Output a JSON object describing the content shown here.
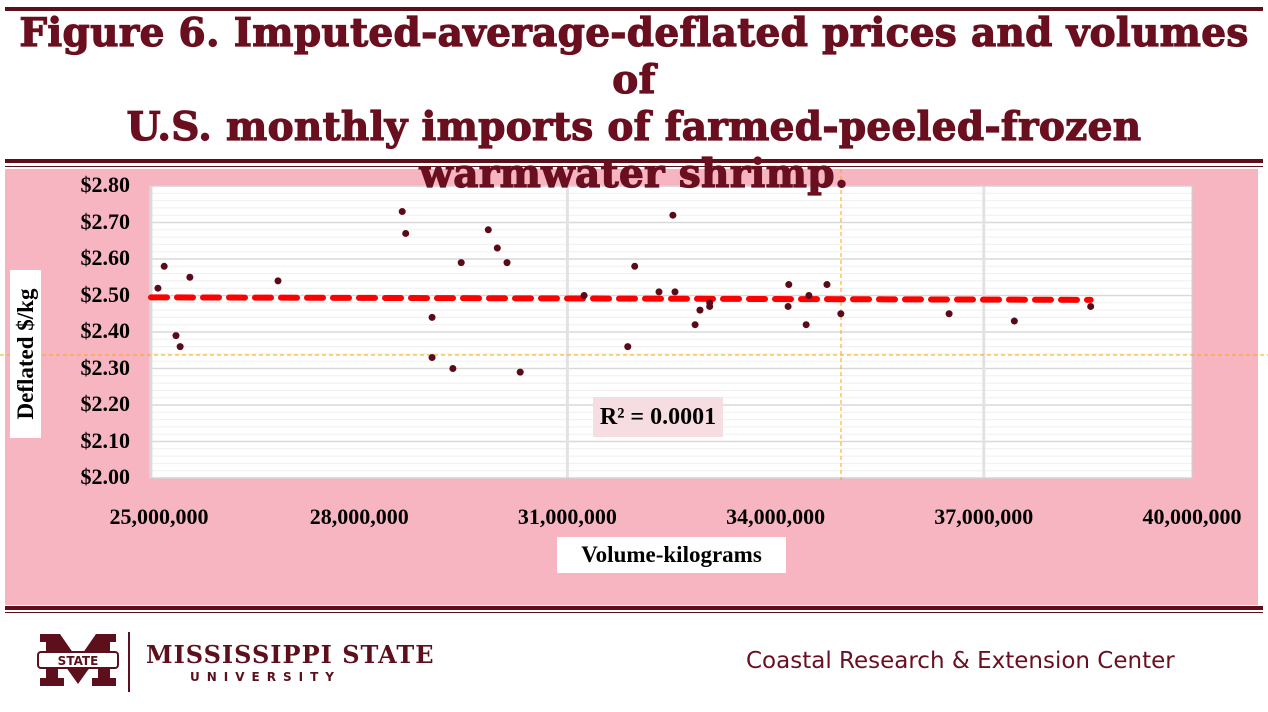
{
  "title": "Figure 6. Imputed-average-deflated prices and volumes of U.S. monthly imports of farmed-peeled-frozen warmwater shrimp.",
  "title_lines": [
    "Figure 6. Imputed-average-deflated prices and volumes of",
    "U.S. monthly imports of farmed-peeled-frozen",
    "warmwater shrimp."
  ],
  "colors": {
    "maroon": "#5e0f1c",
    "panel": "#f7b5c2",
    "point": "#5a0a18",
    "trend": "#ff0000"
  },
  "chart_data": {
    "type": "scatter",
    "title": "",
    "xlabel": "Volume-kilograms",
    "ylabel": "Deflated $/kg",
    "xlim": [
      25000000,
      40000000
    ],
    "ylim": [
      2.0,
      2.8
    ],
    "x_ticks": [
      "25,000,000",
      "28,000,000",
      "31,000,000",
      "34,000,000",
      "37,000,000",
      "40,000,000"
    ],
    "y_ticks": [
      "$2.00",
      "$2.10",
      "$2.20",
      "$2.30",
      "$2.40",
      "$2.50",
      "$2.60",
      "$2.70",
      "$2.80"
    ],
    "grid": true,
    "legend": "none",
    "points": [
      [
        25100000,
        2.52
      ],
      [
        25190000,
        2.58
      ],
      [
        25360000,
        2.39
      ],
      [
        25420000,
        2.36
      ],
      [
        25560000,
        2.55
      ],
      [
        26830000,
        2.54
      ],
      [
        28620000,
        2.73
      ],
      [
        28670000,
        2.67
      ],
      [
        29050000,
        2.44
      ],
      [
        29050000,
        2.33
      ],
      [
        29350000,
        2.3
      ],
      [
        29470000,
        2.59
      ],
      [
        29860000,
        2.68
      ],
      [
        29990000,
        2.63
      ],
      [
        30130000,
        2.59
      ],
      [
        30320000,
        2.29
      ],
      [
        31240000,
        2.5
      ],
      [
        31870000,
        2.36
      ],
      [
        31970000,
        2.58
      ],
      [
        32320000,
        2.51
      ],
      [
        32520000,
        2.72
      ],
      [
        32550000,
        2.51
      ],
      [
        32840000,
        2.42
      ],
      [
        32910000,
        2.46
      ],
      [
        33050000,
        2.47
      ],
      [
        33050000,
        2.48
      ],
      [
        34180000,
        2.47
      ],
      [
        34190000,
        2.53
      ],
      [
        34440000,
        2.42
      ],
      [
        34480000,
        2.5
      ],
      [
        34740000,
        2.53
      ],
      [
        34940000,
        2.45
      ],
      [
        36500000,
        2.45
      ],
      [
        37440000,
        2.43
      ],
      [
        38540000,
        2.47
      ]
    ],
    "trendline": {
      "type": "linear",
      "x": [
        25000000,
        38540000
      ],
      "y": [
        2.495,
        2.488
      ],
      "r_squared_label": "R² = 0.0001"
    }
  },
  "footer": {
    "university_line1": "MISSISSIPPI STATE",
    "university_line2": "UNIVERSITY",
    "logo_text": "STATE",
    "center_name": "Coastal Research & Extension Center"
  }
}
